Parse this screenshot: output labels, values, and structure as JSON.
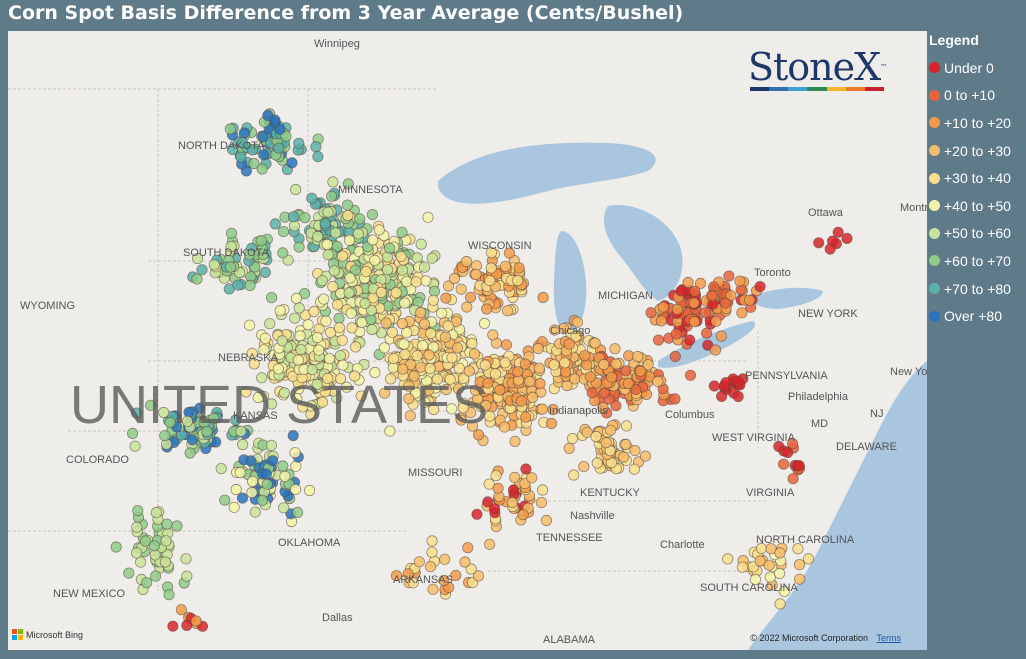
{
  "title": "Corn Spot Basis Difference from 3 Year Average (Cents/Bushel)",
  "legend": {
    "title": "Legend",
    "items": [
      {
        "label": "Under 0",
        "color": "#d7262b"
      },
      {
        "label": "0 to +10",
        "color": "#e8643c"
      },
      {
        "label": "+10 to +20",
        "color": "#f29a4a"
      },
      {
        "label": "+20 to +30",
        "color": "#f6bd6b"
      },
      {
        "label": "+30 to +40",
        "color": "#f8df8d"
      },
      {
        "label": "+40 to +50",
        "color": "#f3f3a8"
      },
      {
        "label": "+50 to +60",
        "color": "#c8e39a"
      },
      {
        "label": "+60 to +70",
        "color": "#8ecb8a"
      },
      {
        "label": "+70 to +80",
        "color": "#5bb0a8"
      },
      {
        "label": "Over +80",
        "color": "#2a74bc"
      }
    ]
  },
  "logo": {
    "text": "StoneX",
    "tm": "™",
    "bar_colors": [
      "#1f3768",
      "#2f6fb6",
      "#3ea0d6",
      "#2e8b57",
      "#f2b632",
      "#ea7c2c",
      "#c8202f"
    ]
  },
  "map_labels": {
    "states": [
      "NORTH DAKOTA",
      "SOUTH DAKOTA",
      "MINNESOTA",
      "WYOMING",
      "NEBRASKA",
      "COLORADO",
      "KANSAS",
      "MISSOURI",
      "OKLAHOMA",
      "ARKANSAS",
      "NEW MEXICO",
      "KENTUCKY",
      "TENNESSEE",
      "WEST VIRGINIA",
      "VIRGINIA",
      "NORTH CAROLINA",
      "SOUTH CAROLINA",
      "ALABAMA",
      "PENNSYLVANIA",
      "NEW YORK",
      "DELAWARE",
      "WISCONSIN",
      "MICHIGAN",
      "MD",
      "NJ"
    ],
    "cities": [
      "Winnipeg",
      "Ottawa",
      "Montreal",
      "Toronto",
      "Chicago",
      "Columbus",
      "Nashville",
      "Charlotte",
      "Philadelphia",
      "New York",
      "Dallas",
      "Indianapolis"
    ],
    "country": "UNITED STATES"
  },
  "attribution": {
    "bing": "Microsoft Bing",
    "copyright": "© 2022 Microsoft Corporation",
    "terms": "Terms"
  }
}
